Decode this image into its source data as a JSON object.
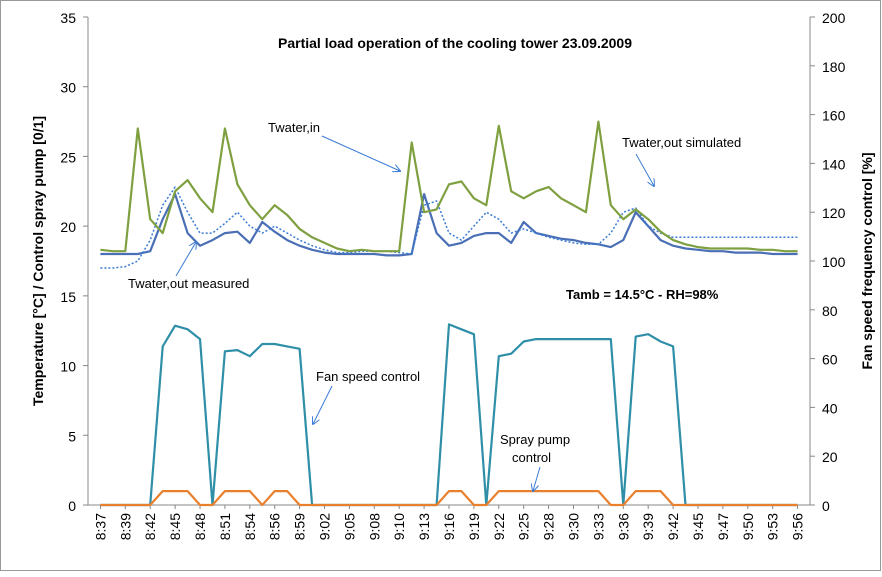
{
  "chart_data": {
    "type": "line",
    "title": "Partial load operation of the cooling tower 23.09.2009",
    "ylabel": "Temperature [°C] / Control spray pump [0/1]",
    "y2label": "Fan speed frequency control [%]",
    "annotations": [
      "Twater,in",
      "Twater,out simulated",
      "Twater,out measured",
      "Tamb = 14.5°C - RH=98%",
      "Fan speed control",
      [
        "Spray pump",
        "control"
      ]
    ],
    "categories": [
      "8:37",
      null,
      "8:39",
      null,
      "8:42",
      null,
      "8:45",
      null,
      "8:48",
      null,
      "8:51",
      null,
      "8:54",
      null,
      "8:56",
      null,
      "8:59",
      null,
      "9:02",
      null,
      "9:05",
      null,
      "9:08",
      null,
      "9:10",
      null,
      "9:13",
      null,
      "9:16",
      null,
      "9:19",
      null,
      "9:22",
      null,
      "9:25",
      null,
      "9:28",
      null,
      "9:30",
      null,
      "9:33",
      null,
      "9:36",
      null,
      "9:39",
      null,
      "9:42",
      null,
      "9:45",
      null,
      "9:47",
      null,
      "9:50",
      null,
      "9:53",
      null,
      "9:56"
    ],
    "series": [
      {
        "color": "#4a6fb5",
        "axis": "y",
        "dash": false,
        "values": [
          18,
          18,
          18,
          18,
          18.2,
          20.5,
          22.3,
          19.5,
          18.6,
          19,
          19.5,
          19.6,
          18.8,
          20.3,
          19.6,
          19,
          18.6,
          18.3,
          18.1,
          18,
          18,
          18,
          18,
          17.9,
          17.9,
          18,
          22.3,
          19.5,
          18.6,
          18.8,
          19.3,
          19.5,
          19.5,
          18.8,
          20.3,
          19.5,
          19.3,
          19.1,
          19,
          18.8,
          18.7,
          18.5,
          19,
          21,
          20,
          19,
          18.6,
          18.4,
          18.3,
          18.2,
          18.2,
          18.1,
          18.1,
          18.1,
          18,
          18,
          18
        ]
      },
      {
        "color": "#3a7bd5",
        "axis": "y",
        "dash": true,
        "values": [
          17,
          17,
          17.1,
          17.5,
          19,
          21.5,
          22.8,
          21,
          19.5,
          19.5,
          20.2,
          21,
          20,
          19.5,
          20,
          19.5,
          19,
          18.6,
          18.3,
          18.1,
          18.1,
          18.2,
          18.2,
          18.2,
          18.1,
          18,
          21.5,
          21.8,
          19.5,
          19,
          20,
          21,
          20.5,
          19.5,
          19.8,
          19.5,
          19.2,
          19,
          18.8,
          18.7,
          18.7,
          19.5,
          21,
          21.3,
          20,
          19.5,
          19.2,
          19.2,
          19.2,
          19.2,
          19.2,
          19.2,
          19.2,
          19.2,
          19.2,
          19.2,
          19.2
        ]
      },
      {
        "color": "#7fa040",
        "axis": "y",
        "dash": false,
        "values": [
          18.3,
          18.2,
          18.2,
          27,
          20.5,
          19.5,
          22.5,
          23.3,
          22,
          21,
          27,
          23,
          21.5,
          20.5,
          21.5,
          20.8,
          19.8,
          19.2,
          18.8,
          18.4,
          18.2,
          18.3,
          18.2,
          18.2,
          18.2,
          26,
          21,
          21.2,
          23,
          23.2,
          22,
          21.5,
          27.2,
          22.5,
          22,
          22.5,
          22.8,
          22,
          21.5,
          21,
          27.5,
          21.5,
          20.5,
          21.2,
          20.5,
          19.6,
          19,
          18.7,
          18.5,
          18.4,
          18.4,
          18.4,
          18.4,
          18.3,
          18.3,
          18.2,
          18.2
        ]
      },
      {
        "color": "#2f8fa8",
        "axis": "y2",
        "dash": false,
        "values": [
          0,
          0,
          0,
          0,
          0,
          65,
          73.5,
          72,
          68,
          0,
          63,
          63.5,
          61,
          66,
          66,
          65,
          64,
          0,
          0,
          0,
          0,
          0,
          0,
          0,
          0,
          0,
          0,
          0,
          74,
          72,
          70,
          0,
          61,
          62,
          67,
          68,
          68,
          68,
          68,
          68,
          68,
          68,
          0,
          69,
          70,
          67,
          65,
          0,
          0,
          0,
          0,
          0,
          0,
          0,
          0,
          0,
          0
        ]
      },
      {
        "color": "#e8802e",
        "axis": "y",
        "dash": false,
        "values": [
          0,
          0,
          0,
          0,
          0,
          1,
          1,
          1,
          0,
          0,
          1,
          1,
          1,
          0,
          1,
          1,
          0,
          0,
          0,
          0,
          0,
          0,
          0,
          0,
          0,
          0,
          0,
          0,
          1,
          1,
          0,
          0,
          1,
          1,
          1,
          1,
          1,
          1,
          1,
          1,
          1,
          0,
          0,
          1,
          1,
          1,
          0,
          0,
          0,
          0,
          0,
          0,
          0,
          0,
          0,
          0,
          0
        ]
      }
    ],
    "ylim": [
      0,
      35
    ],
    "yticks": [
      0,
      5,
      10,
      15,
      20,
      25,
      30,
      35
    ],
    "y2lim": [
      0,
      200
    ],
    "y2ticks": [
      0,
      20,
      40,
      60,
      80,
      100,
      120,
      140,
      160,
      180,
      200
    ],
    "grid": false
  }
}
